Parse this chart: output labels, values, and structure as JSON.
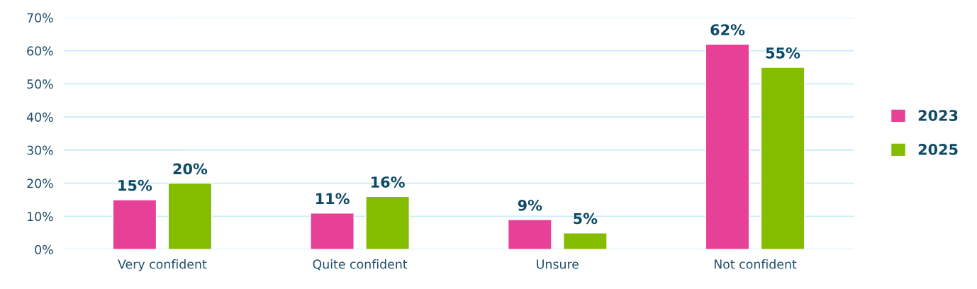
{
  "chart_data": {
    "type": "bar",
    "categories": [
      "Very confident",
      "Quite confident",
      "Unsure",
      "Not confident"
    ],
    "series": [
      {
        "name": "2023",
        "color": "#e64097",
        "values": [
          15,
          11,
          9,
          62
        ],
        "value_labels": [
          "15%",
          "11%",
          "9%",
          "62%"
        ]
      },
      {
        "name": "2025",
        "color": "#84bd00",
        "values": [
          20,
          16,
          5,
          55
        ],
        "value_labels": [
          "20%",
          "16%",
          "5%",
          "55%"
        ]
      }
    ],
    "ylim": [
      0,
      70
    ],
    "yticks": [
      {
        "value": 0,
        "label": "0%"
      },
      {
        "value": 10,
        "label": "10%"
      },
      {
        "value": 20,
        "label": "20%"
      },
      {
        "value": 30,
        "label": "30%"
      },
      {
        "value": 40,
        "label": "40%"
      },
      {
        "value": 50,
        "label": "50%"
      },
      {
        "value": 60,
        "label": "60%"
      },
      {
        "value": 70,
        "label": "70%"
      }
    ],
    "grid": "y",
    "legend": "right"
  }
}
